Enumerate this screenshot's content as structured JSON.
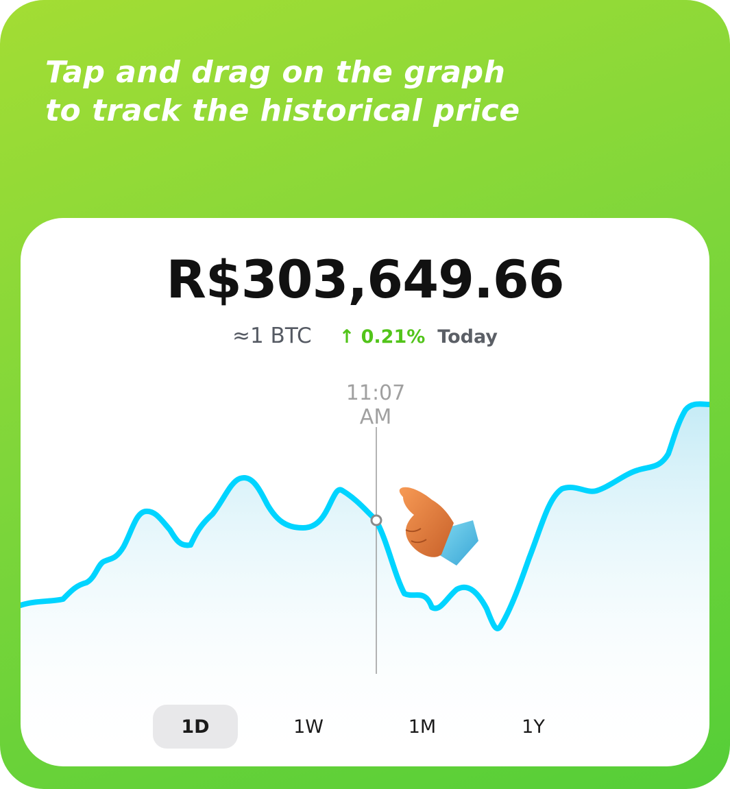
{
  "headline": {
    "line1": "Tap and drag on the graph",
    "line2": "to track the historical price"
  },
  "price": {
    "value": "R$303,649.66",
    "btc_amount": "≈1 BTC",
    "change": "↑ 0.21%",
    "change_period": "Today"
  },
  "chart": {
    "selected_time": "11:07 AM",
    "line_color": "#00d4ff",
    "fill_color": "#cfeff7"
  },
  "periods": [
    {
      "label": "1D",
      "active": true
    },
    {
      "label": "1W",
      "active": false
    },
    {
      "label": "1M",
      "active": false
    },
    {
      "label": "1Y",
      "active": false
    }
  ],
  "colors": {
    "background_top": "#a3dd34",
    "background_bottom": "#55ce38",
    "positive": "#52c41a"
  },
  "icons": {
    "pointer": "pointing-hand-icon"
  }
}
